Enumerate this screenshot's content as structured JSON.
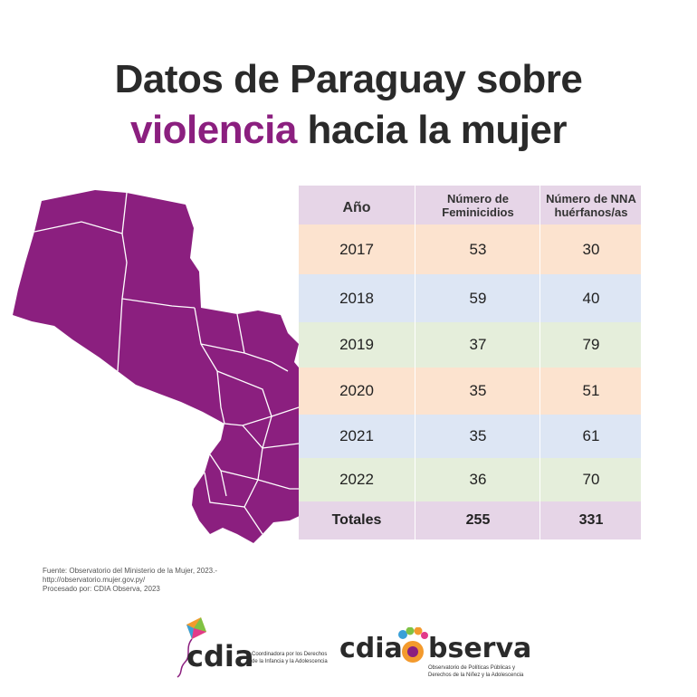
{
  "title": {
    "line1": "Datos de Paraguay sobre",
    "line2_accent": "violencia",
    "line2_rest": "hacia la mujer"
  },
  "colors": {
    "purple": "#8b1f7f",
    "header_bg": "#e6d5e7",
    "orange_bg": "#fce3cf",
    "blue_bg": "#dde6f4",
    "green_bg": "#e5eedb"
  },
  "chart_data": {
    "type": "table",
    "columns": [
      "Año",
      "Número de Feminicidios",
      "Número de NNA huérfanos/as"
    ],
    "rows": [
      {
        "year": "2017",
        "feminicidios": "53",
        "huerfanos": "30"
      },
      {
        "year": "2018",
        "feminicidios": "59",
        "huerfanos": "40"
      },
      {
        "year": "2019",
        "feminicidios": "37",
        "huerfanos": "79"
      },
      {
        "year": "2020",
        "feminicidios": "35",
        "huerfanos": "51"
      },
      {
        "year": "2021",
        "feminicidios": "35",
        "huerfanos": "61"
      },
      {
        "year": "2022",
        "feminicidios": "36",
        "huerfanos": "70"
      }
    ],
    "totals": {
      "label": "Totales",
      "feminicidios": "255",
      "huerfanos": "331"
    }
  },
  "source": {
    "line1": "Fuente: Observatorio del Ministerio de la Mujer, 2023.-",
    "line2": "http://observatorio.mujer.gov.py/",
    "line3": "Procesado por: CDIA Observa, 2023"
  },
  "logos": {
    "cdia_word": "cdia",
    "cdia_sub1": "Coordinadora por los Derechos",
    "cdia_sub2": "de la Infancia y la Adolescencia",
    "observa_word_a": "cdia",
    "observa_word_b": "bserva",
    "observa_sub1": "Observatorio de Políticas Públicas y",
    "observa_sub2": "Derechos de la Niñez y la Adolescencia"
  }
}
